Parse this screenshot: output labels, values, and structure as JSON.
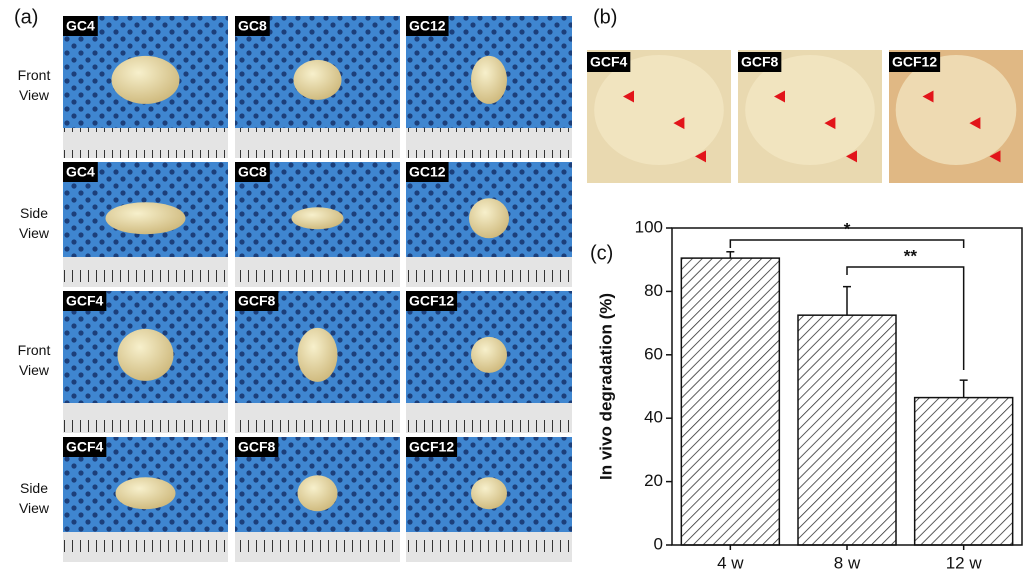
{
  "panel_a": {
    "label": "(a)",
    "row_labels": [
      "Front View",
      "Side View",
      "Front View",
      "Side View"
    ],
    "tiles": [
      [
        "GC4",
        "GC8",
        "GC12"
      ],
      [
        "GC4",
        "GC8",
        "GC12"
      ],
      [
        "GCF4",
        "GCF8",
        "GCF12"
      ],
      [
        "GCF4",
        "GCF8",
        "GCF12"
      ]
    ]
  },
  "panel_b": {
    "label": "(b)",
    "tiles": [
      "GCF4",
      "GCF8",
      "GCF12"
    ]
  },
  "chart_data": {
    "type": "bar",
    "panel_label": "(c)",
    "ylabel": "In vivo degradation (%)",
    "categories": [
      "4 w",
      "8 w",
      "12 w"
    ],
    "values": [
      90.5,
      72.5,
      46.5
    ],
    "errors": [
      2,
      9,
      5.5
    ],
    "color": "#333333",
    "ylim": [
      0,
      100
    ],
    "yticks": [
      0,
      20,
      40,
      60,
      80,
      100
    ],
    "annotations": [
      "*",
      "**"
    ]
  }
}
